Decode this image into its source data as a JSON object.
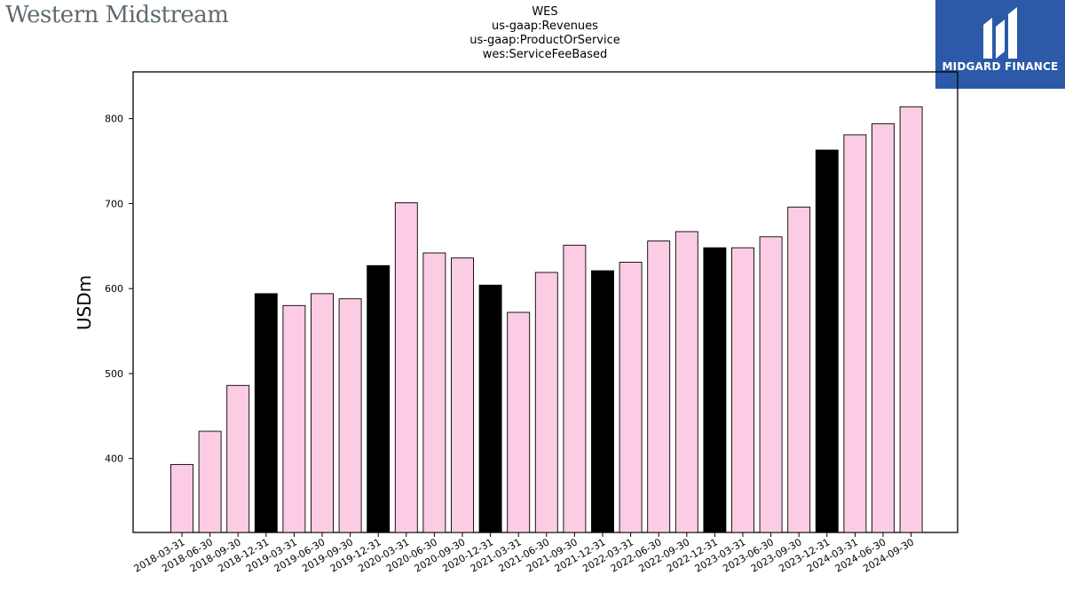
{
  "brand": {
    "company_logo": "Western Midstream",
    "publisher_logo": "MIDGARD FINANCE",
    "publisher_icon": "midgard-m-icon",
    "colors": {
      "publisher_bg": "#2c5aa8",
      "bar_quarter": "#fccce4",
      "bar_year_end": "#000000"
    }
  },
  "chart_data": {
    "type": "bar",
    "title": [
      "WES",
      "us-gaap:Revenues",
      "us-gaap:ProductOrService",
      "wes:ServiceFeeBased"
    ],
    "xlabel": "",
    "ylabel": "USDm",
    "ylim": [
      313,
      855
    ],
    "yticks": [
      400,
      500,
      600,
      700,
      800
    ],
    "grid": false,
    "legend": "none",
    "categories": [
      "2018-03-31",
      "2018-06-30",
      "2018-09-30",
      "2018-12-31",
      "2019-03-31",
      "2019-06-30",
      "2019-09-30",
      "2019-12-31",
      "2020-03-31",
      "2020-06-30",
      "2020-09-30",
      "2020-12-31",
      "2021-03-31",
      "2021-06-30",
      "2021-09-30",
      "2021-12-31",
      "2022-03-31",
      "2022-06-30",
      "2022-09-30",
      "2022-12-31",
      "2023-03-31",
      "2023-06-30",
      "2023-09-30",
      "2023-12-31",
      "2024-03-31",
      "2024-06-30",
      "2024-09-30"
    ],
    "values": [
      393,
      432,
      486,
      594,
      580,
      594,
      588,
      627,
      701,
      642,
      636,
      604,
      572,
      619,
      651,
      621,
      631,
      656,
      667,
      648,
      648,
      661,
      696,
      763,
      781,
      794,
      814
    ],
    "year_end": [
      false,
      false,
      false,
      true,
      false,
      false,
      false,
      true,
      false,
      false,
      false,
      true,
      false,
      false,
      false,
      true,
      false,
      false,
      false,
      true,
      false,
      false,
      false,
      true,
      false,
      false,
      false
    ]
  }
}
